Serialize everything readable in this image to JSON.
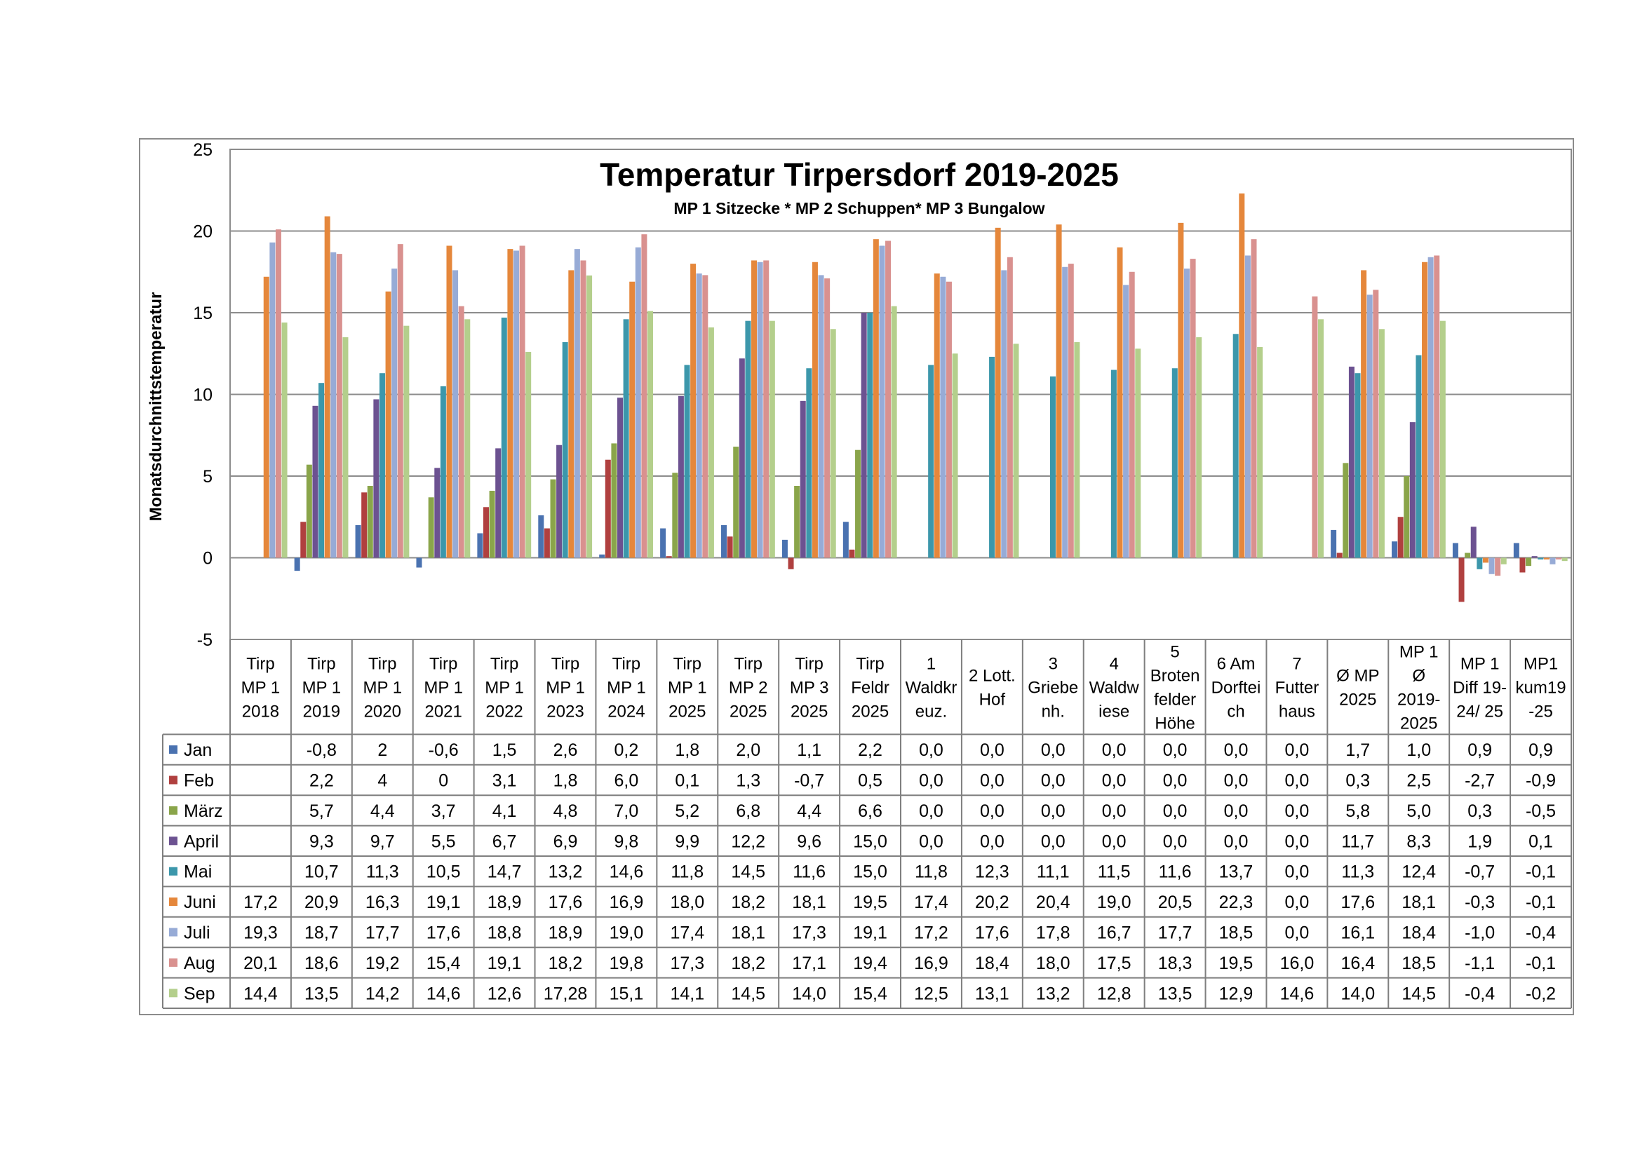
{
  "chart_data": {
    "type": "bar",
    "title": "Temperatur Tirpersdorf 2019-2025",
    "subtitle": "MP 1 Sitzecke * MP 2 Schuppen* MP 3 Bungalow",
    "ylabel": "Monatsdurchnittstemperatur",
    "ylim": [
      -5,
      25
    ],
    "yticks": [
      -5,
      0,
      5,
      10,
      15,
      20,
      25
    ],
    "grid": true,
    "legend": "data-table",
    "categories": [
      [
        "Tirp",
        "MP 1",
        "2018"
      ],
      [
        "Tirp",
        "MP 1",
        "2019"
      ],
      [
        "Tirp",
        "MP 1",
        "2020"
      ],
      [
        "Tirp",
        "MP 1",
        "2021"
      ],
      [
        "Tirp",
        "MP 1",
        "2022"
      ],
      [
        "Tirp",
        "MP 1",
        "2023"
      ],
      [
        "Tirp",
        "MP 1",
        "2024"
      ],
      [
        "Tirp",
        "MP 1",
        "2025"
      ],
      [
        "Tirp",
        "MP 2",
        "2025"
      ],
      [
        "Tirp",
        "MP 3",
        "2025"
      ],
      [
        "Tirp",
        "Feldr",
        "2025"
      ],
      [
        "1",
        "Waldkr",
        "euz."
      ],
      [
        "2 Lott.",
        "Hof"
      ],
      [
        "3",
        "Griebe",
        "nh."
      ],
      [
        "4",
        "Waldw",
        "iese"
      ],
      [
        "5",
        "Broten",
        "felder",
        "Höhe"
      ],
      [
        "6 Am",
        "Dorftei",
        "ch"
      ],
      [
        "7",
        "Futter",
        "haus"
      ],
      [
        "Ø MP",
        "2025"
      ],
      [
        "MP 1",
        "Ø",
        "2019-",
        "2025"
      ],
      [
        "MP 1",
        "Diff 19-",
        "24/ 25"
      ],
      [
        "MP1",
        "kum19",
        "-25"
      ]
    ],
    "series": [
      {
        "name": "Jan",
        "color": "#4a72b0",
        "labels": [
          "",
          "-0,8",
          "2",
          "-0,6",
          "1,5",
          "2,6",
          "0,2",
          "1,8",
          "2,0",
          "1,1",
          "2,2",
          "0,0",
          "0,0",
          "0,0",
          "0,0",
          "0,0",
          "0,0",
          "0,0",
          "1,7",
          "1,0",
          "0,9",
          "0,9"
        ],
        "values": [
          null,
          -0.8,
          2,
          -0.6,
          1.5,
          2.6,
          0.2,
          1.8,
          2.0,
          1.1,
          2.2,
          0.0,
          0.0,
          0.0,
          0.0,
          0.0,
          0.0,
          0.0,
          1.7,
          1.0,
          0.9,
          0.9
        ]
      },
      {
        "name": "Feb",
        "color": "#b0403f",
        "labels": [
          "",
          "2,2",
          "4",
          "0",
          "3,1",
          "1,8",
          "6,0",
          "0,1",
          "1,3",
          "-0,7",
          "0,5",
          "0,0",
          "0,0",
          "0,0",
          "0,0",
          "0,0",
          "0,0",
          "0,0",
          "0,3",
          "2,5",
          "-2,7",
          "-0,9"
        ],
        "values": [
          null,
          2.2,
          4,
          0,
          3.1,
          1.8,
          6.0,
          0.1,
          1.3,
          -0.7,
          0.5,
          0.0,
          0.0,
          0.0,
          0.0,
          0.0,
          0.0,
          0.0,
          0.3,
          2.5,
          -2.7,
          -0.9
        ]
      },
      {
        "name": "März",
        "color": "#8aa54a",
        "labels": [
          "",
          "5,7",
          "4,4",
          "3,7",
          "4,1",
          "4,8",
          "7,0",
          "5,2",
          "6,8",
          "4,4",
          "6,6",
          "0,0",
          "0,0",
          "0,0",
          "0,0",
          "0,0",
          "0,0",
          "0,0",
          "5,8",
          "5,0",
          "0,3",
          "-0,5"
        ],
        "values": [
          null,
          5.7,
          4.4,
          3.7,
          4.1,
          4.8,
          7.0,
          5.2,
          6.8,
          4.4,
          6.6,
          0.0,
          0.0,
          0.0,
          0.0,
          0.0,
          0.0,
          0.0,
          5.8,
          5.0,
          0.3,
          -0.5
        ]
      },
      {
        "name": "April",
        "color": "#6c5291",
        "labels": [
          "",
          "9,3",
          "9,7",
          "5,5",
          "6,7",
          "6,9",
          "9,8",
          "9,9",
          "12,2",
          "9,6",
          "15,0",
          "0,0",
          "0,0",
          "0,0",
          "0,0",
          "0,0",
          "0,0",
          "0,0",
          "11,7",
          "8,3",
          "1,9",
          "0,1"
        ],
        "values": [
          null,
          9.3,
          9.7,
          5.5,
          6.7,
          6.9,
          9.8,
          9.9,
          12.2,
          9.6,
          15.0,
          0.0,
          0.0,
          0.0,
          0.0,
          0.0,
          0.0,
          0.0,
          11.7,
          8.3,
          1.9,
          0.1
        ]
      },
      {
        "name": "Mai",
        "color": "#3c97ab",
        "labels": [
          "",
          "10,7",
          "11,3",
          "10,5",
          "14,7",
          "13,2",
          "14,6",
          "11,8",
          "14,5",
          "11,6",
          "15,0",
          "11,8",
          "12,3",
          "11,1",
          "11,5",
          "11,6",
          "13,7",
          "0,0",
          "11,3",
          "12,4",
          "-0,7",
          "-0,1"
        ],
        "values": [
          null,
          10.7,
          11.3,
          10.5,
          14.7,
          13.2,
          14.6,
          11.8,
          14.5,
          11.6,
          15.0,
          11.8,
          12.3,
          11.1,
          11.5,
          11.6,
          13.7,
          0.0,
          11.3,
          12.4,
          -0.7,
          -0.1
        ]
      },
      {
        "name": "Juni",
        "color": "#e5873b",
        "labels": [
          "17,2",
          "20,9",
          "16,3",
          "19,1",
          "18,9",
          "17,6",
          "16,9",
          "18,0",
          "18,2",
          "18,1",
          "19,5",
          "17,4",
          "20,2",
          "20,4",
          "19,0",
          "20,5",
          "22,3",
          "0,0",
          "17,6",
          "18,1",
          "-0,3",
          "-0,1"
        ],
        "values": [
          17.2,
          20.9,
          16.3,
          19.1,
          18.9,
          17.6,
          16.9,
          18.0,
          18.2,
          18.1,
          19.5,
          17.4,
          20.2,
          20.4,
          19.0,
          20.5,
          22.3,
          0.0,
          17.6,
          18.1,
          -0.3,
          -0.1
        ]
      },
      {
        "name": "Juli",
        "color": "#97abd6",
        "labels": [
          "19,3",
          "18,7",
          "17,7",
          "17,6",
          "18,8",
          "18,9",
          "19,0",
          "17,4",
          "18,1",
          "17,3",
          "19,1",
          "17,2",
          "17,6",
          "17,8",
          "16,7",
          "17,7",
          "18,5",
          "0,0",
          "16,1",
          "18,4",
          "-1,0",
          "-0,4"
        ],
        "values": [
          19.3,
          18.7,
          17.7,
          17.6,
          18.8,
          18.9,
          19.0,
          17.4,
          18.1,
          17.3,
          19.1,
          17.2,
          17.6,
          17.8,
          16.7,
          17.7,
          18.5,
          0.0,
          16.1,
          18.4,
          -1.0,
          -0.4
        ]
      },
      {
        "name": "Aug",
        "color": "#d9918f",
        "labels": [
          "20,1",
          "18,6",
          "19,2",
          "15,4",
          "19,1",
          "18,2",
          "19,8",
          "17,3",
          "18,2",
          "17,1",
          "19,4",
          "16,9",
          "18,4",
          "18,0",
          "17,5",
          "18,3",
          "19,5",
          "16,0",
          "16,4",
          "18,5",
          "-1,1",
          "-0,1"
        ],
        "values": [
          20.1,
          18.6,
          19.2,
          15.4,
          19.1,
          18.2,
          19.8,
          17.3,
          18.2,
          17.1,
          19.4,
          16.9,
          18.4,
          18.0,
          17.5,
          18.3,
          19.5,
          16.0,
          16.4,
          18.5,
          -1.1,
          -0.1
        ]
      },
      {
        "name": "Sep",
        "color": "#b4cf8c",
        "labels": [
          "14,4",
          "13,5",
          "14,2",
          "14,6",
          "12,6",
          "17,28",
          "15,1",
          "14,1",
          "14,5",
          "14,0",
          "15,4",
          "12,5",
          "13,1",
          "13,2",
          "12,8",
          "13,5",
          "12,9",
          "14,6",
          "14,0",
          "14,5",
          "-0,4",
          "-0,2"
        ],
        "values": [
          14.4,
          13.5,
          14.2,
          14.6,
          12.6,
          17.28,
          15.1,
          14.1,
          14.5,
          14.0,
          15.4,
          12.5,
          13.1,
          13.2,
          12.8,
          13.5,
          12.9,
          14.6,
          14.0,
          14.5,
          -0.4,
          -0.2
        ]
      }
    ]
  }
}
